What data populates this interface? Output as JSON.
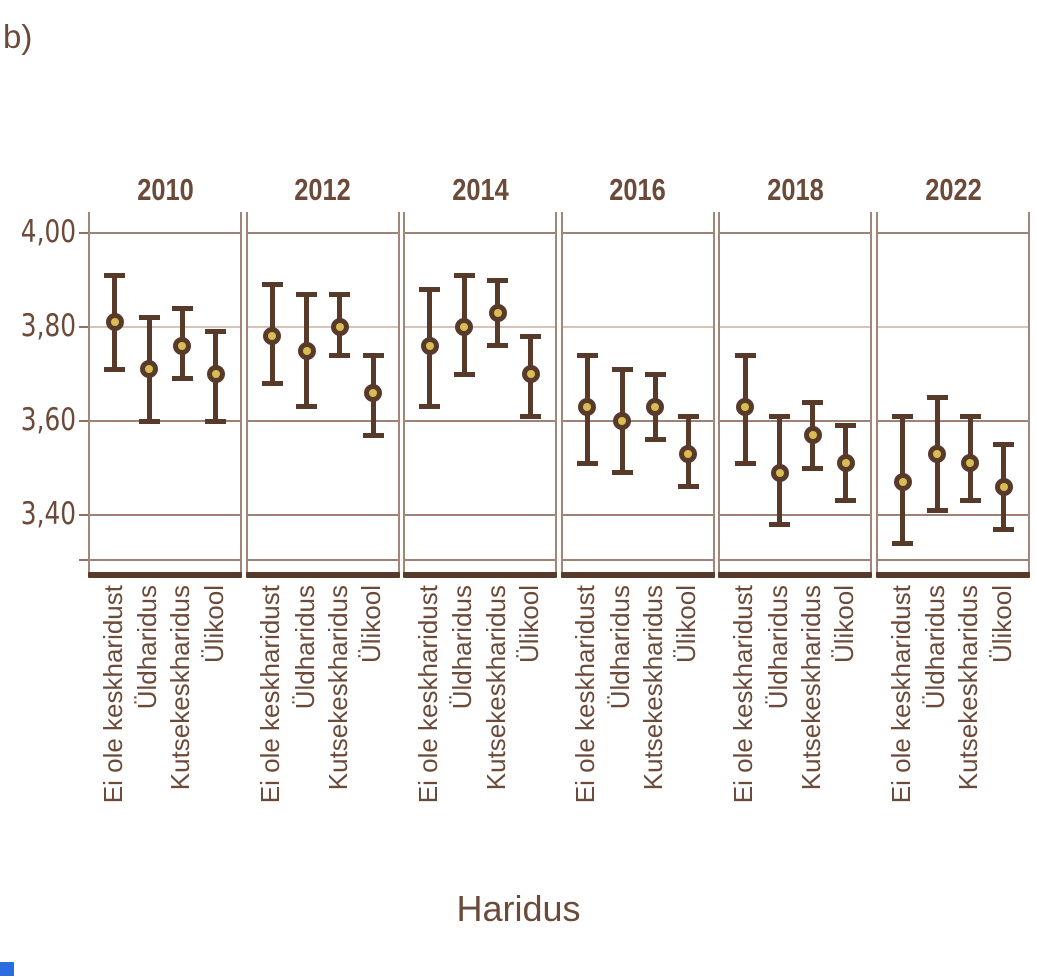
{
  "figure": {
    "panel_label": "b)",
    "x_axis_title": "Haridus",
    "colors": {
      "text": "#6b4a39",
      "errorbar": "#583a2b",
      "marker_ring": "#583a2b",
      "marker_fill": "#d9bd52",
      "gridline": "#9d8276",
      "gridline_light": "#d8c3ba",
      "panel_border": "#a08779",
      "baseline": "#583a2b",
      "corner_square": "#2b6de0"
    }
  },
  "chart_data": {
    "type": "scatter",
    "subtype": "point-estimates-with-ci-errorbars",
    "facet_by": "year",
    "title": "",
    "xlabel": "Haridus",
    "ylabel": "",
    "grid": true,
    "legend": "none",
    "ylim": [
      3.31,
      4.045
    ],
    "yticks": [
      4.0,
      3.8,
      3.6,
      3.4
    ],
    "ytick_labels": [
      "4,00",
      "3,80",
      "3,60",
      "3,40"
    ],
    "categories": [
      "Ei ole keskharidust",
      "Üldharidus",
      "Kutsekeskharidus",
      "Ülikool"
    ],
    "panels": [
      {
        "year": "2010",
        "points": [
          {
            "category": "Ei ole keskharidust",
            "value": 3.81,
            "ci_low": 3.71,
            "ci_high": 3.91
          },
          {
            "category": "Üldharidus",
            "value": 3.71,
            "ci_low": 3.6,
            "ci_high": 3.82
          },
          {
            "category": "Kutsekeskharidus",
            "value": 3.76,
            "ci_low": 3.69,
            "ci_high": 3.84
          },
          {
            "category": "Ülikool",
            "value": 3.7,
            "ci_low": 3.6,
            "ci_high": 3.79
          }
        ]
      },
      {
        "year": "2012",
        "points": [
          {
            "category": "Ei ole keskharidust",
            "value": 3.78,
            "ci_low": 3.68,
            "ci_high": 3.89
          },
          {
            "category": "Üldharidus",
            "value": 3.75,
            "ci_low": 3.63,
            "ci_high": 3.87
          },
          {
            "category": "Kutsekeskharidus",
            "value": 3.8,
            "ci_low": 3.74,
            "ci_high": 3.87
          },
          {
            "category": "Ülikool",
            "value": 3.66,
            "ci_low": 3.57,
            "ci_high": 3.74
          }
        ]
      },
      {
        "year": "2014",
        "points": [
          {
            "category": "Ei ole keskharidust",
            "value": 3.76,
            "ci_low": 3.63,
            "ci_high": 3.88
          },
          {
            "category": "Üldharidus",
            "value": 3.8,
            "ci_low": 3.7,
            "ci_high": 3.91
          },
          {
            "category": "Kutsekeskharidus",
            "value": 3.83,
            "ci_low": 3.76,
            "ci_high": 3.9
          },
          {
            "category": "Ülikool",
            "value": 3.7,
            "ci_low": 3.61,
            "ci_high": 3.78
          }
        ]
      },
      {
        "year": "2016",
        "points": [
          {
            "category": "Ei ole keskharidust",
            "value": 3.63,
            "ci_low": 3.51,
            "ci_high": 3.74
          },
          {
            "category": "Üldharidus",
            "value": 3.6,
            "ci_low": 3.49,
            "ci_high": 3.71
          },
          {
            "category": "Kutsekeskharidus",
            "value": 3.63,
            "ci_low": 3.56,
            "ci_high": 3.7
          },
          {
            "category": "Ülikool",
            "value": 3.53,
            "ci_low": 3.46,
            "ci_high": 3.61
          }
        ]
      },
      {
        "year": "2018",
        "points": [
          {
            "category": "Ei ole keskharidust",
            "value": 3.63,
            "ci_low": 3.51,
            "ci_high": 3.74
          },
          {
            "category": "Üldharidus",
            "value": 3.49,
            "ci_low": 3.38,
            "ci_high": 3.61
          },
          {
            "category": "Kutsekeskharidus",
            "value": 3.57,
            "ci_low": 3.5,
            "ci_high": 3.64
          },
          {
            "category": "Ülikool",
            "value": 3.51,
            "ci_low": 3.43,
            "ci_high": 3.59
          }
        ]
      },
      {
        "year": "2022",
        "points": [
          {
            "category": "Ei ole keskharidust",
            "value": 3.47,
            "ci_low": 3.34,
            "ci_high": 3.61
          },
          {
            "category": "Üldharidus",
            "value": 3.53,
            "ci_low": 3.41,
            "ci_high": 3.65
          },
          {
            "category": "Kutsekeskharidus",
            "value": 3.51,
            "ci_low": 3.43,
            "ci_high": 3.61
          },
          {
            "category": "Ülikool",
            "value": 3.46,
            "ci_low": 3.37,
            "ci_high": 3.55
          }
        ]
      }
    ]
  }
}
